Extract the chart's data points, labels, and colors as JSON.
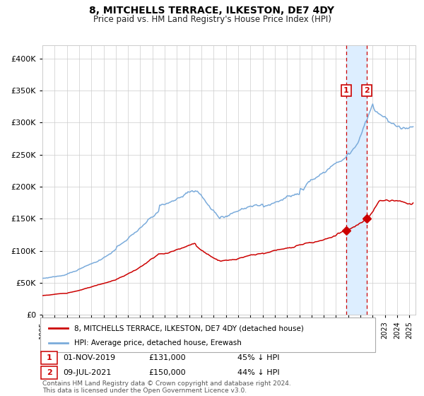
{
  "title": "8, MITCHELLS TERRACE, ILKESTON, DE7 4DY",
  "subtitle": "Price paid vs. HM Land Registry's House Price Index (HPI)",
  "hpi_color": "#7aabdb",
  "property_color": "#cc0000",
  "background_color": "#ffffff",
  "grid_color": "#cccccc",
  "highlight_color": "#ddeeff",
  "legend_label_property": "8, MITCHELLS TERRACE, ILKESTON, DE7 4DY (detached house)",
  "legend_label_hpi": "HPI: Average price, detached house, Erewash",
  "purchase1_date": 2019.833,
  "purchase1_price": 131000,
  "purchase1_label": "1",
  "purchase1_date_str": "01-NOV-2019",
  "purchase1_price_str": "£131,000",
  "purchase1_pct_str": "45% ↓ HPI",
  "purchase2_date": 2021.52,
  "purchase2_price": 150000,
  "purchase2_label": "2",
  "purchase2_date_str": "09-JUL-2021",
  "purchase2_price_str": "£150,000",
  "purchase2_pct_str": "44% ↓ HPI",
  "footer": "Contains HM Land Registry data © Crown copyright and database right 2024.\nThis data is licensed under the Open Government Licence v3.0.",
  "ylim": [
    0,
    420000
  ],
  "xmin": 1995.0,
  "xmax": 2025.5
}
